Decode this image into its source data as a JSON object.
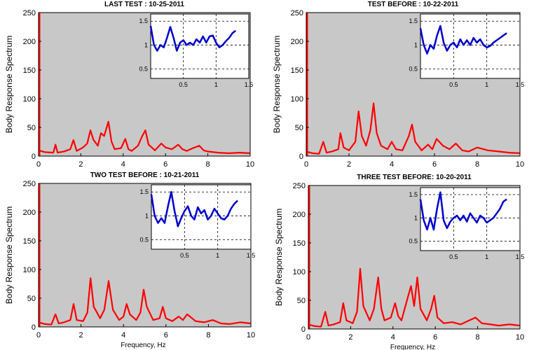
{
  "chart_data": [
    {
      "type": "line",
      "title": "LAST TEST : 10-25-2011",
      "ylabel": "Body Response Spectrum",
      "xlabel": "",
      "xlim": [
        0,
        10
      ],
      "ylim": [
        0,
        250
      ],
      "xticks": [
        "0",
        "2",
        "4",
        "6",
        "8",
        "10"
      ],
      "yticks": [
        "0",
        "50",
        "100",
        "150",
        "200",
        "250"
      ],
      "series": [
        {
          "color": "#ff0000",
          "x": [
            0,
            0.3,
            0.7,
            0.8,
            0.9,
            1.2,
            1.5,
            1.65,
            1.8,
            2.1,
            2.3,
            2.45,
            2.6,
            2.8,
            2.95,
            3.1,
            3.3,
            3.45,
            3.6,
            3.9,
            4.1,
            4.25,
            4.4,
            4.7,
            4.9,
            5.05,
            5.2,
            5.5,
            5.8,
            6.0,
            6.3,
            6.6,
            6.8,
            7.0,
            7.3,
            7.6,
            7.8,
            8.0,
            8.5,
            9.0,
            9.5,
            10
          ],
          "values": [
            10,
            7,
            6,
            20,
            6,
            8,
            12,
            28,
            9,
            15,
            22,
            45,
            28,
            18,
            40,
            35,
            60,
            25,
            12,
            14,
            30,
            12,
            9,
            18,
            35,
            45,
            20,
            10,
            22,
            15,
            12,
            20,
            12,
            9,
            14,
            18,
            10,
            8,
            6,
            5,
            6,
            5
          ]
        }
      ],
      "inset": {
        "xticks": [
          "0.5",
          "1",
          "1.5"
        ],
        "yticks": [
          "0.5",
          "1",
          "1.5"
        ],
        "xlim": [
          0,
          1.5
        ],
        "ylim": [
          0.3,
          1.65
        ],
        "x": [
          0,
          0.05,
          0.1,
          0.15,
          0.2,
          0.25,
          0.3,
          0.35,
          0.4,
          0.45,
          0.5,
          0.55,
          0.6,
          0.65,
          0.7,
          0.75,
          0.8,
          0.85,
          0.9,
          0.95,
          1.0,
          1.05,
          1.1,
          1.15,
          1.2,
          1.25,
          1.3
        ],
        "values": [
          1.4,
          1.0,
          0.88,
          1.0,
          0.95,
          1.15,
          1.38,
          1.15,
          0.88,
          1.05,
          1.1,
          1.0,
          1.05,
          1.0,
          1.12,
          1.05,
          1.18,
          1.05,
          1.18,
          1.2,
          1.05,
          0.95,
          1.0,
          1.08,
          1.15,
          1.25,
          1.3
        ],
        "color": "#0000cc"
      }
    },
    {
      "type": "line",
      "title": "TEST BEFORE : 10-22-2011",
      "ylabel": "Body Response Spectrum",
      "xlabel": "",
      "xlim": [
        0,
        10
      ],
      "ylim": [
        0,
        250
      ],
      "xticks": [
        "0",
        "2",
        "4",
        "6",
        "8",
        "10"
      ],
      "yticks": [
        "0",
        "50",
        "100",
        "150",
        "200",
        "250"
      ],
      "series": [
        {
          "color": "#ff0000",
          "x": [
            0,
            0.3,
            0.6,
            0.8,
            0.95,
            1.2,
            1.5,
            1.6,
            1.75,
            2.0,
            2.3,
            2.45,
            2.6,
            2.8,
            3.0,
            3.15,
            3.3,
            3.5,
            3.8,
            4.0,
            4.2,
            4.5,
            4.8,
            4.95,
            5.1,
            5.4,
            5.7,
            5.9,
            6.1,
            6.4,
            6.7,
            7.0,
            7.3,
            7.6,
            8.0,
            8.5,
            9.0,
            9.5,
            10
          ],
          "values": [
            8,
            5,
            4,
            25,
            6,
            8,
            12,
            40,
            15,
            10,
            25,
            78,
            35,
            18,
            45,
            92,
            40,
            18,
            12,
            25,
            12,
            10,
            35,
            55,
            25,
            10,
            20,
            12,
            30,
            18,
            12,
            22,
            10,
            8,
            15,
            10,
            8,
            6,
            5
          ]
        }
      ],
      "inset": {
        "xticks": [
          "0.5",
          "1",
          "1.5"
        ],
        "yticks": [
          "0.5",
          "1",
          "1.5"
        ],
        "xlim": [
          0,
          1.5
        ],
        "ylim": [
          0.3,
          1.65
        ],
        "x": [
          0,
          0.05,
          0.1,
          0.15,
          0.2,
          0.25,
          0.3,
          0.35,
          0.4,
          0.45,
          0.5,
          0.55,
          0.6,
          0.65,
          0.7,
          0.75,
          0.8,
          0.85,
          0.9,
          0.95,
          1.0,
          1.05,
          1.1,
          1.15,
          1.2,
          1.25,
          1.3
        ],
        "values": [
          1.35,
          1.0,
          0.82,
          1.0,
          0.92,
          1.2,
          1.4,
          1.05,
          0.88,
          1.0,
          1.05,
          0.95,
          1.12,
          1.0,
          1.1,
          1.0,
          1.15,
          1.05,
          1.12,
          1.0,
          0.95,
          0.98,
          1.05,
          1.1,
          1.15,
          1.2,
          1.25
        ],
        "color": "#0000cc"
      }
    },
    {
      "type": "line",
      "title": "TWO TEST BEFORE : 10-21-2011",
      "ylabel": "Body Response Spectrum",
      "xlabel": "Frequency, Hz",
      "xlim": [
        0,
        10
      ],
      "ylim": [
        0,
        250
      ],
      "xticks": [
        "0",
        "2",
        "4",
        "6",
        "8",
        "10"
      ],
      "yticks": [
        "0",
        "50",
        "100",
        "150",
        "200",
        "250"
      ],
      "series": [
        {
          "color": "#ff0000",
          "x": [
            0,
            0.3,
            0.6,
            0.8,
            0.95,
            1.2,
            1.5,
            1.65,
            1.8,
            2.1,
            2.3,
            2.45,
            2.6,
            2.9,
            3.1,
            3.3,
            3.5,
            3.8,
            4.0,
            4.15,
            4.3,
            4.6,
            4.8,
            4.95,
            5.1,
            5.4,
            5.7,
            5.85,
            6.0,
            6.3,
            6.6,
            6.8,
            7.0,
            7.4,
            7.8,
            8.2,
            8.6,
            9.0,
            9.5,
            10
          ],
          "values": [
            8,
            5,
            4,
            22,
            6,
            8,
            12,
            40,
            12,
            10,
            25,
            85,
            35,
            15,
            30,
            80,
            30,
            12,
            18,
            40,
            22,
            12,
            25,
            65,
            35,
            12,
            15,
            35,
            15,
            10,
            18,
            12,
            22,
            10,
            8,
            12,
            6,
            5,
            8,
            6
          ]
        }
      ],
      "inset": {
        "xticks": [
          "0.5",
          "1",
          "1.5"
        ],
        "yticks": [
          "0.5",
          "1",
          "1.5"
        ],
        "xlim": [
          0,
          1.5
        ],
        "ylim": [
          0.3,
          1.65
        ],
        "x": [
          0,
          0.05,
          0.1,
          0.15,
          0.2,
          0.25,
          0.3,
          0.35,
          0.4,
          0.45,
          0.5,
          0.55,
          0.6,
          0.65,
          0.7,
          0.75,
          0.8,
          0.85,
          0.9,
          0.95,
          1.0,
          1.05,
          1.1,
          1.15,
          1.2,
          1.25,
          1.3
        ],
        "values": [
          1.45,
          1.0,
          0.85,
          0.95,
          0.85,
          1.2,
          1.5,
          1.1,
          0.78,
          0.95,
          1.1,
          1.2,
          1.0,
          0.92,
          1.18,
          1.05,
          1.12,
          0.92,
          1.0,
          1.15,
          1.05,
          0.95,
          0.92,
          1.0,
          1.15,
          1.25,
          1.32
        ],
        "color": "#0000cc"
      }
    },
    {
      "type": "line",
      "title": "THREE TEST BEFORE:   10-20-2011",
      "ylabel": "Body Response Spectrum",
      "xlabel": "Frequency, Hz",
      "xlim": [
        0,
        10
      ],
      "ylim": [
        0,
        250
      ],
      "xticks": [
        "0",
        "2",
        "4",
        "6",
        "8",
        "10"
      ],
      "yticks": [
        "0",
        "50",
        "100",
        "150",
        "200",
        "250"
      ],
      "series": [
        {
          "color": "#ff0000",
          "x": [
            0,
            0.3,
            0.6,
            0.8,
            0.95,
            1.2,
            1.5,
            1.65,
            1.8,
            2.1,
            2.3,
            2.45,
            2.6,
            2.9,
            3.1,
            3.3,
            3.45,
            3.6,
            3.9,
            4.1,
            4.25,
            4.4,
            4.7,
            4.85,
            5.0,
            5.15,
            5.3,
            5.6,
            5.8,
            5.95,
            6.1,
            6.4,
            6.8,
            7.2,
            7.6,
            7.9,
            8.2,
            8.6,
            9.0,
            9.5,
            10
          ],
          "values": [
            8,
            5,
            4,
            30,
            6,
            8,
            12,
            45,
            15,
            10,
            30,
            105,
            40,
            15,
            35,
            90,
            35,
            15,
            20,
            45,
            22,
            15,
            55,
            75,
            40,
            90,
            35,
            15,
            35,
            58,
            20,
            10,
            12,
            8,
            15,
            20,
            10,
            8,
            6,
            8,
            6
          ]
        }
      ],
      "inset": {
        "xticks": [
          "0.5",
          "1",
          "1.5"
        ],
        "yticks": [
          "0.5",
          "1",
          "1.5"
        ],
        "xlim": [
          0,
          1.5
        ],
        "ylim": [
          0.3,
          1.65
        ],
        "x": [
          0,
          0.05,
          0.1,
          0.15,
          0.2,
          0.25,
          0.3,
          0.35,
          0.4,
          0.45,
          0.5,
          0.55,
          0.6,
          0.65,
          0.7,
          0.75,
          0.8,
          0.85,
          0.9,
          0.95,
          1.0,
          1.05,
          1.1,
          1.15,
          1.2,
          1.25,
          1.3
        ],
        "values": [
          1.4,
          0.95,
          0.75,
          1.0,
          0.75,
          1.2,
          1.55,
          0.95,
          0.78,
          0.92,
          1.0,
          1.05,
          0.95,
          1.05,
          0.92,
          1.1,
          1.0,
          0.9,
          1.05,
          1.0,
          0.9,
          0.95,
          1.0,
          1.1,
          1.2,
          1.35,
          1.4
        ],
        "color": "#0000cc"
      }
    }
  ]
}
